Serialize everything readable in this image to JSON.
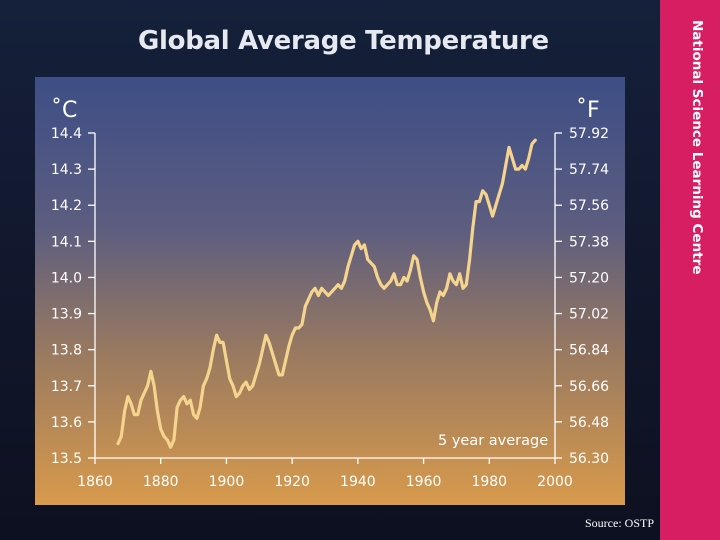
{
  "title": "Global Average Temperature",
  "sidebar": {
    "text": "National Science Learning Centre"
  },
  "source": "Source: OSTP",
  "colors": {
    "sidebar": "#d81e63",
    "line": "#f5d48e",
    "axis_text": "#ffffff"
  },
  "chart_data": {
    "type": "line",
    "title": "Global Average Temperature",
    "y_left_label": "˚C",
    "y_right_label": "˚F",
    "annotation": "5 year average",
    "xlim": [
      1860,
      2000
    ],
    "ylim": [
      13.5,
      14.4
    ],
    "x_ticks": [
      1860,
      1880,
      1900,
      1920,
      1940,
      1960,
      1980,
      2000
    ],
    "y_ticks_c": [
      14.4,
      14.3,
      14.2,
      14.1,
      14.0,
      13.9,
      13.8,
      13.7,
      13.6,
      13.5
    ],
    "y_ticks_f": [
      "57.92",
      "57.74",
      "57.56",
      "57.38",
      "57.20",
      "57.02",
      "56.84",
      "56.66",
      "56.48",
      "56.30"
    ],
    "grid": false,
    "series": [
      {
        "values": [
          [
            1867,
            13.54
          ],
          [
            1868,
            13.56
          ],
          [
            1869,
            13.63
          ],
          [
            1870,
            13.67
          ],
          [
            1871,
            13.65
          ],
          [
            1872,
            13.62
          ],
          [
            1873,
            13.62
          ],
          [
            1874,
            13.66
          ],
          [
            1875,
            13.68
          ],
          [
            1876,
            13.7
          ],
          [
            1877,
            13.74
          ],
          [
            1878,
            13.7
          ],
          [
            1879,
            13.63
          ],
          [
            1880,
            13.58
          ],
          [
            1881,
            13.56
          ],
          [
            1882,
            13.55
          ],
          [
            1883,
            13.53
          ],
          [
            1884,
            13.55
          ],
          [
            1885,
            13.64
          ],
          [
            1886,
            13.66
          ],
          [
            1887,
            13.67
          ],
          [
            1888,
            13.65
          ],
          [
            1889,
            13.66
          ],
          [
            1890,
            13.62
          ],
          [
            1891,
            13.61
          ],
          [
            1892,
            13.64
          ],
          [
            1893,
            13.7
          ],
          [
            1894,
            13.72
          ],
          [
            1895,
            13.75
          ],
          [
            1896,
            13.8
          ],
          [
            1897,
            13.84
          ],
          [
            1898,
            13.82
          ],
          [
            1899,
            13.82
          ],
          [
            1900,
            13.77
          ],
          [
            1901,
            13.72
          ],
          [
            1902,
            13.7
          ],
          [
            1903,
            13.67
          ],
          [
            1904,
            13.68
          ],
          [
            1905,
            13.7
          ],
          [
            1906,
            13.71
          ],
          [
            1907,
            13.69
          ],
          [
            1908,
            13.7
          ],
          [
            1909,
            13.73
          ],
          [
            1910,
            13.76
          ],
          [
            1911,
            13.8
          ],
          [
            1912,
            13.84
          ],
          [
            1913,
            13.82
          ],
          [
            1914,
            13.79
          ],
          [
            1915,
            13.76
          ],
          [
            1916,
            13.73
          ],
          [
            1917,
            13.73
          ],
          [
            1918,
            13.77
          ],
          [
            1919,
            13.81
          ],
          [
            1920,
            13.84
          ],
          [
            1921,
            13.86
          ],
          [
            1922,
            13.86
          ],
          [
            1923,
            13.87
          ],
          [
            1924,
            13.92
          ],
          [
            1925,
            13.94
          ],
          [
            1926,
            13.96
          ],
          [
            1927,
            13.97
          ],
          [
            1928,
            13.95
          ],
          [
            1929,
            13.97
          ],
          [
            1930,
            13.96
          ],
          [
            1931,
            13.95
          ],
          [
            1932,
            13.96
          ],
          [
            1933,
            13.97
          ],
          [
            1934,
            13.98
          ],
          [
            1935,
            13.97
          ],
          [
            1936,
            13.99
          ],
          [
            1937,
            14.03
          ],
          [
            1938,
            14.06
          ],
          [
            1939,
            14.09
          ],
          [
            1940,
            14.1
          ],
          [
            1941,
            14.08
          ],
          [
            1942,
            14.09
          ],
          [
            1943,
            14.05
          ],
          [
            1944,
            14.04
          ],
          [
            1945,
            14.03
          ],
          [
            1946,
            14.0
          ],
          [
            1947,
            13.98
          ],
          [
            1948,
            13.97
          ],
          [
            1949,
            13.98
          ],
          [
            1950,
            13.99
          ],
          [
            1951,
            14.01
          ],
          [
            1952,
            13.98
          ],
          [
            1953,
            13.98
          ],
          [
            1954,
            14.0
          ],
          [
            1955,
            13.99
          ],
          [
            1956,
            14.02
          ],
          [
            1957,
            14.06
          ],
          [
            1958,
            14.05
          ],
          [
            1959,
            14.0
          ],
          [
            1960,
            13.96
          ],
          [
            1961,
            13.93
          ],
          [
            1962,
            13.91
          ],
          [
            1963,
            13.88
          ],
          [
            1964,
            13.93
          ],
          [
            1965,
            13.96
          ],
          [
            1966,
            13.95
          ],
          [
            1967,
            13.97
          ],
          [
            1968,
            14.01
          ],
          [
            1969,
            13.99
          ],
          [
            1970,
            13.98
          ],
          [
            1971,
            14.01
          ],
          [
            1972,
            13.97
          ],
          [
            1973,
            13.98
          ],
          [
            1974,
            14.05
          ],
          [
            1975,
            14.14
          ],
          [
            1976,
            14.21
          ],
          [
            1977,
            14.21
          ],
          [
            1978,
            14.24
          ],
          [
            1979,
            14.23
          ],
          [
            1980,
            14.2
          ],
          [
            1981,
            14.17
          ],
          [
            1982,
            14.2
          ],
          [
            1983,
            14.23
          ],
          [
            1984,
            14.26
          ],
          [
            1985,
            14.31
          ],
          [
            1986,
            14.36
          ],
          [
            1987,
            14.33
          ],
          [
            1988,
            14.3
          ],
          [
            1989,
            14.3
          ],
          [
            1990,
            14.31
          ],
          [
            1991,
            14.3
          ],
          [
            1992,
            14.33
          ],
          [
            1993,
            14.37
          ],
          [
            1994,
            14.38
          ]
        ]
      }
    ]
  }
}
